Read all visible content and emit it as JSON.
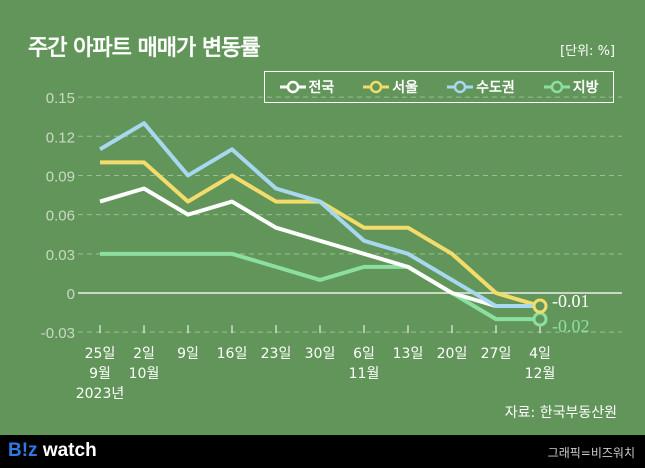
{
  "header": {
    "title": "주간 아파트 매매가 변동률",
    "unit": "[단위: %]"
  },
  "chart_data": {
    "type": "line",
    "title": "주간 아파트 매매가 변동률",
    "ylabel": "[단위: %]",
    "ylim": [
      -0.03,
      0.15
    ],
    "yticks": [
      "0.15",
      "0.12",
      "0.09",
      "0.06",
      "0.03",
      "0",
      "-0.03"
    ],
    "ytick_values": [
      0.15,
      0.12,
      0.09,
      0.06,
      0.03,
      0,
      -0.03
    ],
    "categories": [
      "25일",
      "2일",
      "9일",
      "16일",
      "23일",
      "30일",
      "6일",
      "13일",
      "20일",
      "27일",
      "4일"
    ],
    "month_labels": [
      "9월",
      "10월",
      "",
      "",
      "",
      "",
      "11월",
      "",
      "",
      "",
      "12월"
    ],
    "year_label": "2023년",
    "grid": true,
    "legend_placement": "top-right",
    "series": [
      {
        "name": "전국",
        "color": "#ffffff",
        "values": [
          0.07,
          0.08,
          0.06,
          0.07,
          0.05,
          0.04,
          0.03,
          0.02,
          0,
          -0.01,
          -0.01
        ]
      },
      {
        "name": "서울",
        "color": "#f3dc6b",
        "values": [
          0.1,
          0.1,
          0.07,
          0.09,
          0.07,
          0.07,
          0.05,
          0.05,
          0.03,
          0,
          -0.01
        ]
      },
      {
        "name": "수도권",
        "color": "#a8d8f0",
        "values": [
          0.11,
          0.13,
          0.09,
          0.11,
          0.08,
          0.07,
          0.04,
          0.03,
          0.01,
          -0.01,
          -0.01
        ]
      },
      {
        "name": "지방",
        "color": "#8be0a0",
        "values": [
          0.03,
          0.03,
          0.03,
          0.03,
          0.02,
          0.01,
          0.02,
          0.02,
          0,
          -0.02,
          -0.02
        ]
      }
    ],
    "annotations": [
      {
        "text": "-0.01",
        "color": "#ffffff"
      },
      {
        "text": "-0.02",
        "color": "#8be0a0"
      }
    ]
  },
  "source": "자료: 한국부동산원",
  "footer": {
    "logo": "B!z watch",
    "credit": "그래픽=비즈워치"
  }
}
